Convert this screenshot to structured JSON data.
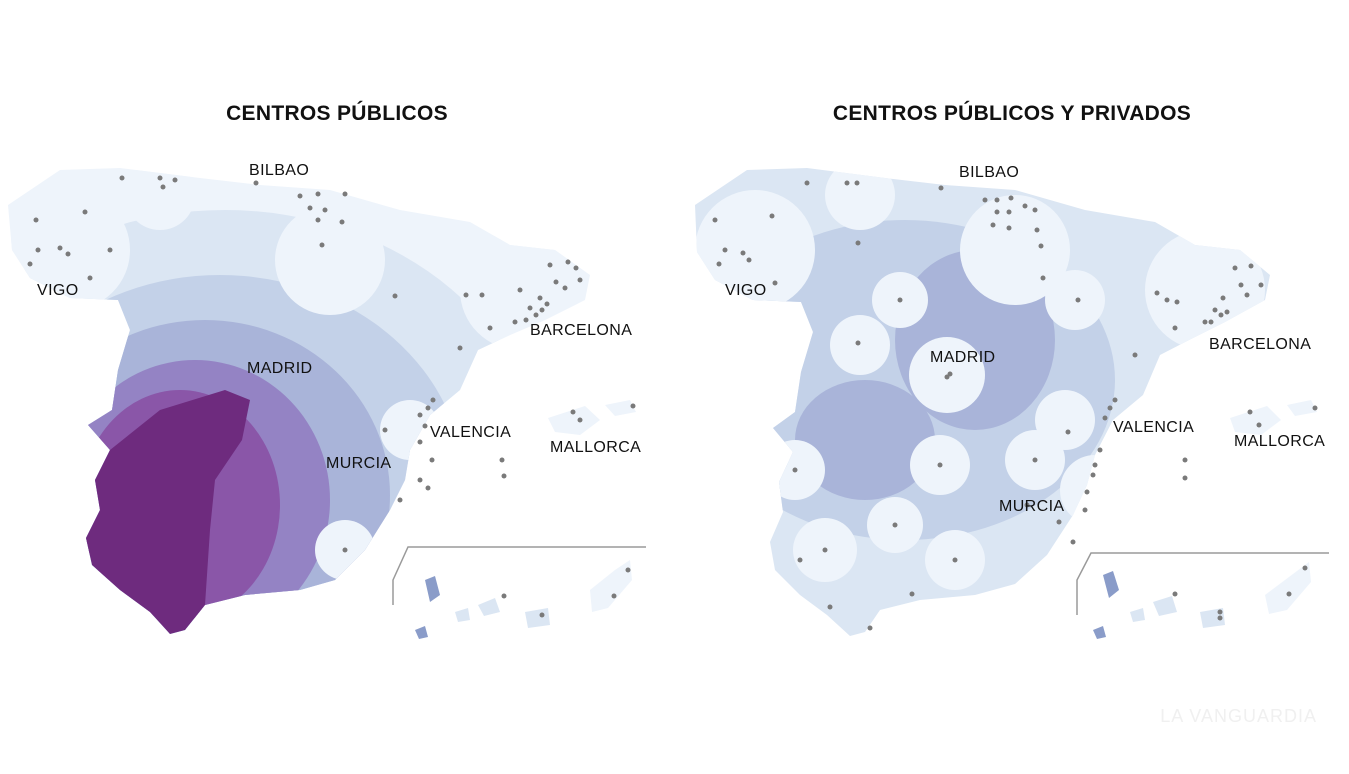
{
  "maps": [
    {
      "title": "CENTROS PÚBLICOS",
      "palette": [
        "#eef4fb",
        "#dbe6f3",
        "#c3d1e8",
        "#a9b4d9",
        "#9483c4",
        "#8a56a8",
        "#6e2b7e"
      ],
      "cities": [
        "BILBAO",
        "VIGO",
        "BARCELONA",
        "MADRID",
        "VALENCIA",
        "MURCIA",
        "MALLORCA"
      ]
    },
    {
      "title": "CENTROS PÚBLICOS Y PRIVADOS",
      "palette": [
        "#eef4fb",
        "#dbe6f3",
        "#c3d1e8",
        "#a9b4d9"
      ],
      "cities": [
        "BILBAO",
        "VIGO",
        "BARCELONA",
        "MADRID",
        "VALENCIA",
        "MURCIA",
        "MALLORCA"
      ]
    }
  ],
  "dot_color": "#7a7a7a",
  "watermark": "LA VANGUARDIA"
}
